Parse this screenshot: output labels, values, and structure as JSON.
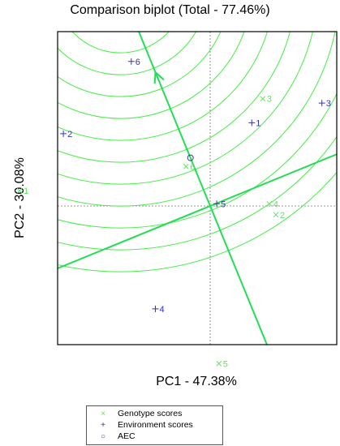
{
  "chart_data": {
    "type": "scatter",
    "title": "Comparison biplot (Total - 77.46%)",
    "xlabel": "PC1 - 47.38%",
    "ylabel": "PC2 - 30.08%",
    "colors": {
      "genotype": "#66dd66",
      "environment": "#3333bb",
      "aec": "#3333bb",
      "lines": "#22dd55",
      "circles": "#44ee44"
    },
    "genotypes": [
      {
        "label": "1",
        "x": -4.35,
        "y": 0.35
      },
      {
        "label": "2",
        "x": 1.5,
        "y": -0.2
      },
      {
        "label": "3",
        "x": 1.2,
        "y": 2.45
      },
      {
        "label": "4",
        "x": 1.35,
        "y": 0.05
      },
      {
        "label": "5",
        "x": 0.2,
        "y": -3.6
      },
      {
        "label": "6",
        "x": -0.55,
        "y": 0.9
      }
    ],
    "environments": [
      {
        "label": "1",
        "x": 0.95,
        "y": 1.9
      },
      {
        "label": "2",
        "x": -3.35,
        "y": 1.65
      },
      {
        "label": "3",
        "x": 2.55,
        "y": 2.35
      },
      {
        "label": "4",
        "x": -1.25,
        "y": -2.35
      },
      {
        "label": "5",
        "x": 0.15,
        "y": 0.05
      },
      {
        "label": "6",
        "x": -1.8,
        "y": 3.3
      }
    ],
    "aec_point": {
      "x": -0.45,
      "y": 1.1
    },
    "circle_radii": [
      1.0,
      1.5,
      2.0,
      2.5,
      3.0,
      3.5,
      4.0,
      4.5,
      5.0,
      5.5,
      6.0,
      6.5
    ],
    "legend": [
      "Genotype scores",
      "Environment scores",
      "AEC"
    ],
    "legend_symbols": [
      "×",
      "+",
      "○"
    ]
  }
}
